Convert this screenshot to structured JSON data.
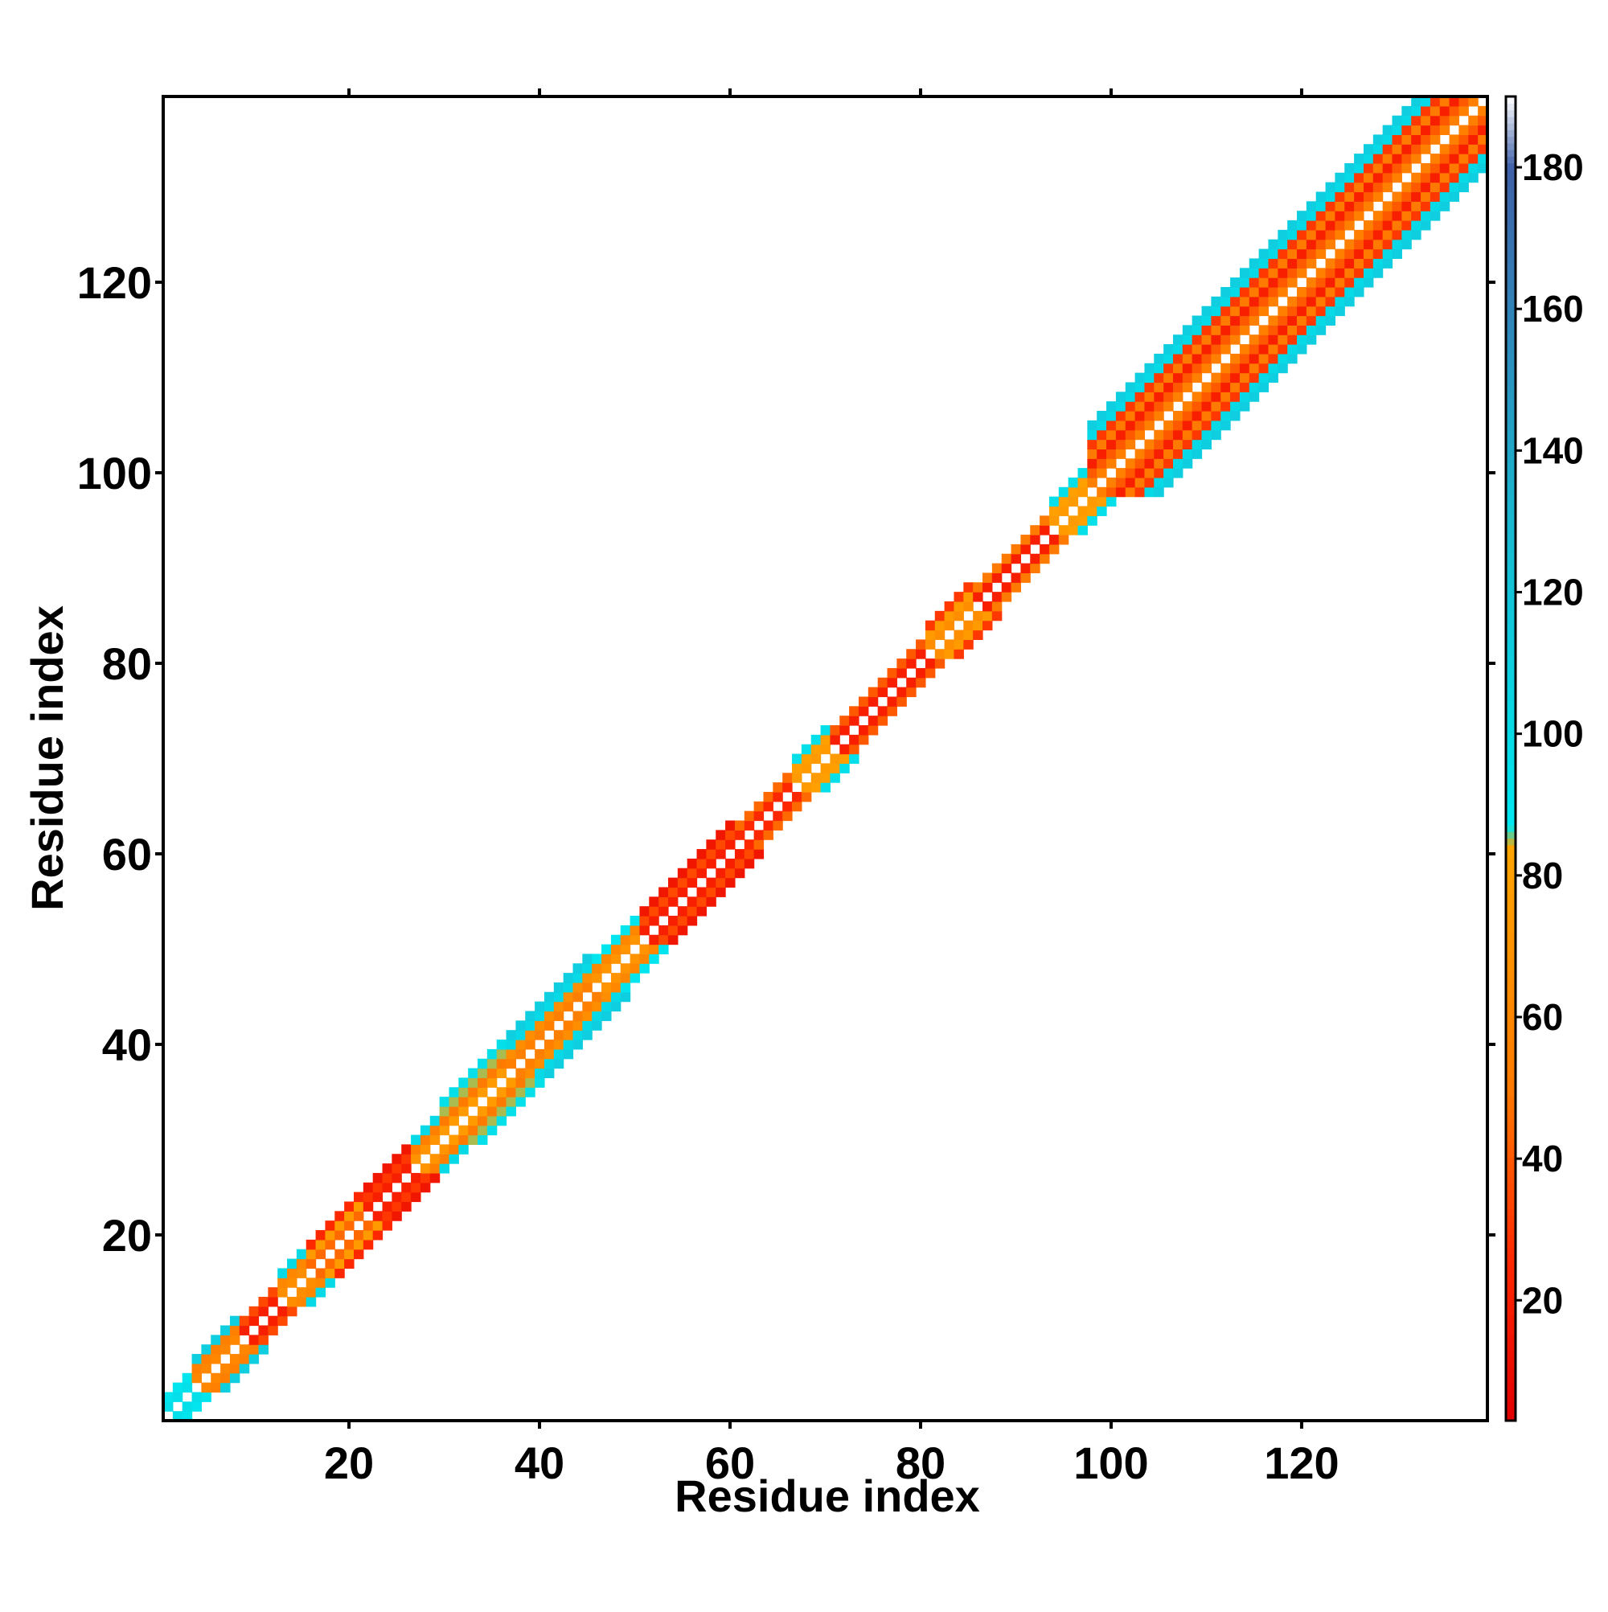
{
  "chart_data": {
    "type": "heatmap",
    "title": "",
    "xlabel": "Residue index",
    "ylabel": "Residue index",
    "xlim": [
      0.5,
      139.5
    ],
    "ylim": [
      0.5,
      139.5
    ],
    "x_ticks": [
      20,
      40,
      60,
      80,
      100,
      120
    ],
    "y_ticks": [
      20,
      40,
      60,
      80,
      100,
      120
    ],
    "x_tick_labels": [
      "20",
      "40",
      "60",
      "80",
      "100",
      "120"
    ],
    "y_tick_labels": [
      "20",
      "40",
      "60",
      "80",
      "100",
      "120"
    ],
    "n_residues": 139,
    "symmetric": true,
    "diagonal_value": "blank",
    "colorbar": {
      "min": 3,
      "max": 190,
      "ticks": [
        20,
        40,
        60,
        80,
        100,
        120,
        140,
        160,
        180
      ],
      "tick_labels": [
        "20",
        "40",
        "60",
        "80",
        "100",
        "120",
        "140",
        "160",
        "180"
      ],
      "color_stops": [
        {
          "value": 3,
          "color": "#e00000"
        },
        {
          "value": 26,
          "color": "#ff2a00"
        },
        {
          "value": 50,
          "color": "#ff7a00"
        },
        {
          "value": 84,
          "color": "#ffa500"
        },
        {
          "value": 87,
          "color": "#00e8f0"
        },
        {
          "value": 130,
          "color": "#1ab8d0"
        },
        {
          "value": 180,
          "color": "#4060a8"
        },
        {
          "value": 190,
          "color": "#ffffff"
        }
      ]
    },
    "band_description": "values near the diagonal only; cells outside band are blank",
    "bands": [
      {
        "from": 1,
        "to": 3,
        "offsets": {
          "1": 95,
          "2": 90
        }
      },
      {
        "from": 4,
        "to": 8,
        "offsets": {
          "1": 60,
          "2": 55,
          "3": 110
        }
      },
      {
        "from": 9,
        "to": 12,
        "offsets": {
          "1": 20,
          "2": 35
        }
      },
      {
        "from": 13,
        "to": 15,
        "offsets": {
          "1": 65,
          "2": 60,
          "3": 100
        }
      },
      {
        "from": 16,
        "to": 21,
        "offsets": {
          "1": 45,
          "2": 75,
          "3": 25
        }
      },
      {
        "from": 22,
        "to": 26,
        "offsets": {
          "1": 20,
          "2": 30,
          "3": 15
        }
      },
      {
        "from": 27,
        "to": 29,
        "offsets": {
          "1": 70,
          "2": 55,
          "3": 100
        }
      },
      {
        "from": 30,
        "to": 36,
        "offsets": {
          "1": 75,
          "2": 50,
          "3": 85,
          "4": 95
        }
      },
      {
        "from": 37,
        "to": 45,
        "offsets": {
          "1": 55,
          "2": 65,
          "3": 100,
          "4": 110
        }
      },
      {
        "from": 46,
        "to": 50,
        "offsets": {
          "1": 70,
          "2": 60,
          "3": 90
        }
      },
      {
        "from": 51,
        "to": 60,
        "offsets": {
          "1": 20,
          "2": 35,
          "3": 15
        }
      },
      {
        "from": 61,
        "to": 66,
        "offsets": {
          "1": 25,
          "2": 45
        }
      },
      {
        "from": 67,
        "to": 70,
        "offsets": {
          "1": 75,
          "2": 80,
          "3": 95
        }
      },
      {
        "from": 71,
        "to": 80,
        "offsets": {
          "1": 20,
          "2": 40
        }
      },
      {
        "from": 81,
        "to": 85,
        "offsets": {
          "1": 65,
          "2": 75,
          "3": 30
        }
      },
      {
        "from": 86,
        "to": 93,
        "offsets": {
          "1": 20,
          "2": 50
        }
      },
      {
        "from": 94,
        "to": 97,
        "offsets": {
          "1": 75,
          "2": 80,
          "3": 95
        }
      },
      {
        "from": 98,
        "to": 139,
        "offsets": {
          "1": 55,
          "2": 40,
          "3": 20,
          "4": 50,
          "5": 30,
          "6": 100,
          "7": 110
        }
      }
    ]
  }
}
